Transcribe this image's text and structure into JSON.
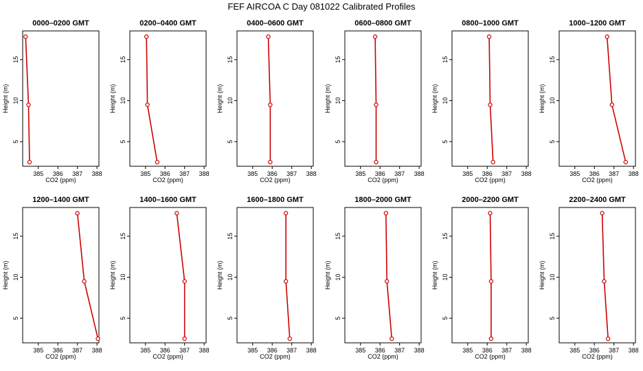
{
  "page_title": "FEF AIRCOA C  Day 081022  Calibrated Profiles",
  "chart_data": [
    {
      "type": "line",
      "title": "0000–0200 GMT",
      "xlabel": "CO2 (ppm)",
      "ylabel": "Height (m)",
      "xlim": [
        384.2,
        388.1
      ],
      "ylim": [
        2,
        18.5
      ],
      "xticks": [
        385,
        386,
        387,
        388
      ],
      "yticks": [
        5,
        10,
        15
      ],
      "grid": false,
      "series": [
        {
          "x": [
            384.35,
            384.5,
            384.55
          ],
          "y": [
            17.8,
            9.5,
            2.5
          ]
        }
      ]
    },
    {
      "type": "line",
      "title": "0200–0400 GMT",
      "xlabel": "CO2 (ppm)",
      "ylabel": "Height (m)",
      "xlim": [
        384.2,
        388.1
      ],
      "ylim": [
        2,
        18.5
      ],
      "xticks": [
        385,
        386,
        387,
        388
      ],
      "yticks": [
        5,
        10,
        15
      ],
      "grid": false,
      "series": [
        {
          "x": [
            385.05,
            385.1,
            385.6
          ],
          "y": [
            17.8,
            9.5,
            2.5
          ]
        }
      ]
    },
    {
      "type": "line",
      "title": "0400–0600 GMT",
      "xlabel": "CO2 (ppm)",
      "ylabel": "Height (m)",
      "xlim": [
        384.2,
        388.1
      ],
      "ylim": [
        2,
        18.5
      ],
      "xticks": [
        385,
        386,
        387,
        388
      ],
      "yticks": [
        5,
        10,
        15
      ],
      "grid": false,
      "series": [
        {
          "x": [
            385.8,
            385.9,
            385.9
          ],
          "y": [
            17.8,
            9.5,
            2.5
          ]
        }
      ]
    },
    {
      "type": "line",
      "title": "0600–0800 GMT",
      "xlabel": "CO2 (ppm)",
      "ylabel": "Height (m)",
      "xlim": [
        384.2,
        388.1
      ],
      "ylim": [
        2,
        18.5
      ],
      "xticks": [
        385,
        386,
        387,
        388
      ],
      "yticks": [
        5,
        10,
        15
      ],
      "grid": false,
      "series": [
        {
          "x": [
            385.75,
            385.8,
            385.8
          ],
          "y": [
            17.8,
            9.5,
            2.5
          ]
        }
      ]
    },
    {
      "type": "line",
      "title": "0800–1000 GMT",
      "xlabel": "CO2 (ppm)",
      "ylabel": "Height (m)",
      "xlim": [
        384.2,
        388.1
      ],
      "ylim": [
        2,
        18.5
      ],
      "xticks": [
        385,
        386,
        387,
        388
      ],
      "yticks": [
        5,
        10,
        15
      ],
      "grid": false,
      "series": [
        {
          "x": [
            386.1,
            386.15,
            386.3
          ],
          "y": [
            17.8,
            9.5,
            2.5
          ]
        }
      ]
    },
    {
      "type": "line",
      "title": "1000–1200 GMT",
      "xlabel": "CO2 (ppm)",
      "ylabel": "Height (m)",
      "xlim": [
        384.2,
        388.1
      ],
      "ylim": [
        2,
        18.5
      ],
      "xticks": [
        385,
        386,
        387,
        388
      ],
      "yticks": [
        5,
        10,
        15
      ],
      "grid": false,
      "series": [
        {
          "x": [
            386.65,
            386.9,
            387.6
          ],
          "y": [
            17.8,
            9.5,
            2.5
          ]
        }
      ]
    },
    {
      "type": "line",
      "title": "1200–1400 GMT",
      "xlabel": "CO2 (ppm)",
      "ylabel": "Height (m)",
      "xlim": [
        384.2,
        388.1
      ],
      "ylim": [
        2,
        18.5
      ],
      "xticks": [
        385,
        386,
        387,
        388
      ],
      "yticks": [
        5,
        10,
        15
      ],
      "grid": false,
      "series": [
        {
          "x": [
            387.0,
            387.35,
            388.05
          ],
          "y": [
            17.8,
            9.5,
            2.5
          ]
        }
      ]
    },
    {
      "type": "line",
      "title": "1400–1600 GMT",
      "xlabel": "CO2 (ppm)",
      "ylabel": "Height (m)",
      "xlim": [
        384.2,
        388.1
      ],
      "ylim": [
        2,
        18.5
      ],
      "xticks": [
        385,
        386,
        387,
        388
      ],
      "yticks": [
        5,
        10,
        15
      ],
      "grid": false,
      "series": [
        {
          "x": [
            386.6,
            387.0,
            387.0
          ],
          "y": [
            17.8,
            9.5,
            2.5
          ]
        }
      ]
    },
    {
      "type": "line",
      "title": "1600–1800 GMT",
      "xlabel": "CO2 (ppm)",
      "ylabel": "Height (m)",
      "xlim": [
        384.2,
        388.1
      ],
      "ylim": [
        2,
        18.5
      ],
      "xticks": [
        385,
        386,
        387,
        388
      ],
      "yticks": [
        5,
        10,
        15
      ],
      "grid": false,
      "series": [
        {
          "x": [
            386.7,
            386.7,
            386.9
          ],
          "y": [
            17.8,
            9.5,
            2.5
          ]
        }
      ]
    },
    {
      "type": "line",
      "title": "1800–2000 GMT",
      "xlabel": "CO2 (ppm)",
      "ylabel": "Height (m)",
      "xlim": [
        384.2,
        388.1
      ],
      "ylim": [
        2,
        18.5
      ],
      "xticks": [
        385,
        386,
        387,
        388
      ],
      "yticks": [
        5,
        10,
        15
      ],
      "grid": false,
      "series": [
        {
          "x": [
            386.3,
            386.35,
            386.6
          ],
          "y": [
            17.8,
            9.5,
            2.5
          ]
        }
      ]
    },
    {
      "type": "line",
      "title": "2000–2200 GMT",
      "xlabel": "CO2 (ppm)",
      "ylabel": "Height (m)",
      "xlim": [
        384.2,
        388.1
      ],
      "ylim": [
        2,
        18.5
      ],
      "xticks": [
        385,
        386,
        387,
        388
      ],
      "yticks": [
        5,
        10,
        15
      ],
      "grid": false,
      "series": [
        {
          "x": [
            386.15,
            386.2,
            386.2
          ],
          "y": [
            17.8,
            9.5,
            2.5
          ]
        }
      ]
    },
    {
      "type": "line",
      "title": "2200–2400 GMT",
      "xlabel": "CO2 (ppm)",
      "ylabel": "Height (m)",
      "xlim": [
        384.2,
        388.1
      ],
      "ylim": [
        2,
        18.5
      ],
      "xticks": [
        385,
        386,
        387,
        388
      ],
      "yticks": [
        5,
        10,
        15
      ],
      "grid": false,
      "series": [
        {
          "x": [
            386.4,
            386.5,
            386.7
          ],
          "y": [
            17.8,
            9.5,
            2.5
          ]
        }
      ]
    }
  ],
  "colors": {
    "line": "#cc0000",
    "marker": "#cc0000",
    "axis": "#000000"
  }
}
